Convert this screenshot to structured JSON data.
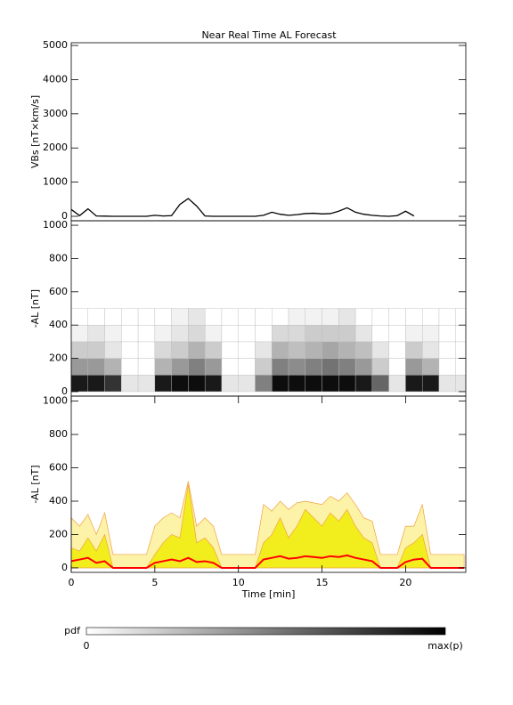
{
  "chart_data": [
    {
      "type": "line",
      "title": "Near Real Time AL Forecast",
      "ylabel": "VBs [nT×km/s]",
      "x": [
        0,
        0.5,
        1,
        1.5,
        2,
        2.5,
        3,
        3.5,
        4,
        4.5,
        5,
        5.5,
        6,
        6.5,
        7,
        7.5,
        8,
        8.5,
        9,
        9.5,
        10,
        10.5,
        11,
        11.5,
        12,
        12.5,
        13,
        13.5,
        14,
        14.5,
        15,
        15.5,
        16,
        16.5,
        17,
        17.5,
        18,
        18.5,
        19,
        19.5,
        20,
        20.5,
        21,
        21.5,
        22,
        22.5,
        23,
        23.5
      ],
      "series": [
        {
          "color": "#000000",
          "values": [
            200,
            20,
            220,
            10,
            5,
            0,
            0,
            0,
            0,
            0,
            30,
            10,
            20,
            350,
            520,
            300,
            10,
            0,
            0,
            0,
            0,
            0,
            0,
            30,
            120,
            60,
            30,
            50,
            80,
            90,
            70,
            80,
            150,
            250,
            120,
            60,
            30,
            10,
            0,
            20,
            150,
            10,
            null,
            null,
            null,
            null,
            null,
            null
          ]
        }
      ],
      "xlim": [
        0,
        23.6
      ],
      "ylim": [
        -130,
        5080
      ],
      "yticks": [
        0,
        1000,
        2000,
        3000,
        4000,
        5000
      ]
    },
    {
      "type": "heatmap",
      "ylabel": "-AL [nT]",
      "x": [
        0,
        1,
        2,
        3,
        4,
        5,
        6,
        7,
        8,
        9,
        10,
        11,
        12,
        13,
        14,
        15,
        16,
        17,
        18,
        19,
        20,
        21,
        22,
        23,
        24
      ],
      "y": [
        0,
        100,
        200,
        300,
        400,
        500
      ],
      "z": [
        [
          0.9,
          0.4,
          0.2,
          0.05,
          0
        ],
        [
          0.9,
          0.4,
          0.2,
          0.1,
          0
        ],
        [
          0.8,
          0.3,
          0.1,
          0.05,
          0
        ],
        [
          0.1,
          0,
          0,
          0,
          0
        ],
        [
          0.1,
          0,
          0,
          0,
          0
        ],
        [
          0.9,
          0.3,
          0.15,
          0.05,
          0
        ],
        [
          0.95,
          0.4,
          0.2,
          0.1,
          0.05
        ],
        [
          0.95,
          0.5,
          0.3,
          0.15,
          0.1
        ],
        [
          0.9,
          0.4,
          0.2,
          0.05,
          0
        ],
        [
          0.1,
          0,
          0,
          0,
          0
        ],
        [
          0.1,
          0,
          0,
          0,
          0
        ],
        [
          0.5,
          0.2,
          0.1,
          0,
          0
        ],
        [
          0.95,
          0.5,
          0.3,
          0.15,
          0
        ],
        [
          0.95,
          0.45,
          0.25,
          0.15,
          0.05
        ],
        [
          0.95,
          0.5,
          0.3,
          0.2,
          0.05
        ],
        [
          0.95,
          0.55,
          0.35,
          0.2,
          0.05
        ],
        [
          0.95,
          0.5,
          0.3,
          0.2,
          0.1
        ],
        [
          0.9,
          0.4,
          0.25,
          0.1,
          0
        ],
        [
          0.6,
          0.2,
          0.1,
          0,
          0
        ],
        [
          0.1,
          0,
          0,
          0,
          0
        ],
        [
          0.9,
          0.4,
          0.2,
          0.05,
          0
        ],
        [
          0.9,
          0.3,
          0.1,
          0.05,
          0
        ],
        [
          0.1,
          0,
          0,
          0,
          0
        ],
        [
          0.1,
          0,
          0,
          0,
          0
        ]
      ],
      "xlim": [
        0,
        23.6
      ],
      "ylim": [
        -27,
        1027
      ],
      "yticks": [
        0,
        200,
        400,
        600,
        800,
        1000
      ]
    },
    {
      "type": "area",
      "ylabel": "-AL [nT]",
      "xlabel": "Time [min]",
      "x": [
        0,
        0.5,
        1,
        1.5,
        2,
        2.5,
        3,
        3.5,
        4,
        4.5,
        5,
        5.5,
        6,
        6.5,
        7,
        7.5,
        8,
        8.5,
        9,
        9.5,
        10,
        10.5,
        11,
        11.5,
        12,
        12.5,
        13,
        13.5,
        14,
        14.5,
        15,
        15.5,
        16,
        16.5,
        17,
        17.5,
        18,
        18.5,
        19,
        19.5,
        20,
        20.5,
        21,
        21.5,
        22,
        22.5,
        23,
        23.5
      ],
      "series": [
        {
          "color": "#fdf3a8",
          "style": "area",
          "values": [
            300,
            250,
            320,
            200,
            330,
            80,
            80,
            80,
            80,
            80,
            250,
            300,
            330,
            300,
            520,
            250,
            300,
            250,
            80,
            80,
            80,
            80,
            80,
            380,
            340,
            400,
            350,
            390,
            400,
            390,
            380,
            430,
            400,
            450,
            380,
            300,
            280,
            80,
            80,
            80,
            250,
            250,
            380,
            80,
            80,
            80,
            80,
            80
          ]
        },
        {
          "color": "#f2ee1e",
          "style": "area",
          "values": [
            120,
            100,
            180,
            100,
            200,
            0,
            0,
            0,
            0,
            0,
            80,
            150,
            200,
            180,
            500,
            150,
            180,
            120,
            0,
            0,
            0,
            0,
            0,
            150,
            200,
            300,
            180,
            250,
            350,
            300,
            250,
            330,
            280,
            350,
            250,
            180,
            150,
            0,
            0,
            0,
            120,
            150,
            200,
            0,
            0,
            0,
            0,
            0
          ]
        },
        {
          "color": "#ff0000",
          "style": "line",
          "values": [
            40,
            50,
            60,
            30,
            40,
            0,
            0,
            0,
            0,
            0,
            30,
            40,
            50,
            40,
            60,
            35,
            40,
            30,
            0,
            0,
            0,
            0,
            0,
            50,
            60,
            70,
            55,
            60,
            70,
            65,
            60,
            70,
            65,
            75,
            60,
            50,
            40,
            0,
            0,
            0,
            35,
            50,
            55,
            0,
            0,
            0,
            0,
            0
          ]
        }
      ],
      "xlim": [
        0,
        23.6
      ],
      "ylim": [
        -27,
        1030
      ],
      "yticks": [
        0,
        200,
        400,
        600,
        800,
        1000
      ],
      "xticks": [
        0,
        5,
        10,
        15,
        20
      ]
    }
  ],
  "colorbar": {
    "label": "pdf",
    "min_label": "0",
    "max_label": "max(p)"
  }
}
